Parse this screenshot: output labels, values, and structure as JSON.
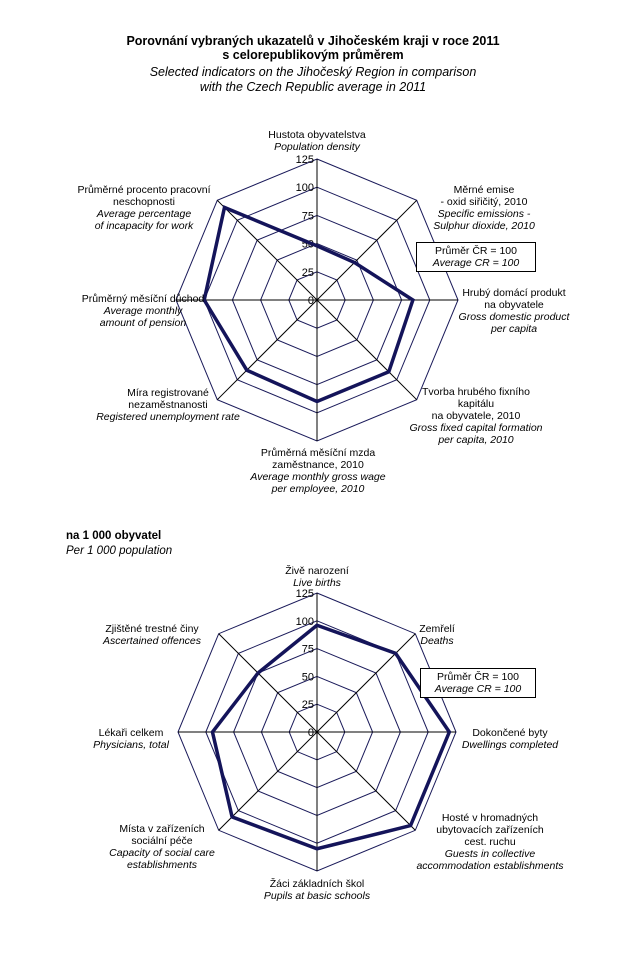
{
  "title": {
    "cz1": "Porovnání vybraných ukazatelů v Jihočeském kraji v roce 2011",
    "cz2": "s celorepublikovým průměrem",
    "en1": "Selected indicators on the Jihočeský Region in comparison",
    "en2": "with the Czech Republic average in 2011"
  },
  "section2": {
    "cz": "na 1 000 obyvatel",
    "en": "Per 1 000 population"
  },
  "legend": {
    "cz": "Průměr ČR = 100",
    "en": "Average CR = 100"
  },
  "colors": {
    "series": "#14145a",
    "grid": "#1a1a5a"
  },
  "chart_data": [
    {
      "type": "radar",
      "rlim": [
        0,
        125
      ],
      "ticks": [
        "0",
        "25",
        "50",
        "75",
        "100",
        "125"
      ],
      "categories": [
        {
          "cz": [
            "Hustota obyvatelstva"
          ],
          "en": [
            "Population density"
          ]
        },
        {
          "cz": [
            "Měrné emise",
            "- oxid siřičitý, 2010"
          ],
          "en": [
            "Specific emissions  -",
            "Sulphur dioxide, 2010"
          ]
        },
        {
          "cz": [
            "Hrubý domácí produkt",
            "na obyvatele"
          ],
          "en": [
            "Gross domestic product",
            "per capita"
          ]
        },
        {
          "cz": [
            "Tvorba hrubého fixního",
            "kapitálu",
            "na obyvatele, 2010"
          ],
          "en": [
            "Gross fixed capital formation",
            "per capita, 2010"
          ]
        },
        {
          "cz": [
            "Průměrná měsíční mzda",
            "zaměstnance, 2010"
          ],
          "en": [
            "Average monthly gross wage",
            "per employee, 2010"
          ]
        },
        {
          "cz": [
            "Míra registrované",
            "nezaměstnanosti"
          ],
          "en": [
            "Registered unemployment rate"
          ]
        },
        {
          "cz": [
            "Průměrný měsíční důchod"
          ],
          "en": [
            "Average monthly",
            "amount of pension"
          ]
        },
        {
          "cz": [
            "Průměrné procento pracovní",
            "neschopnosti"
          ],
          "en": [
            "Average percentage",
            "of incapacity for work"
          ]
        }
      ],
      "values": [
        48,
        47,
        85,
        90,
        90,
        88,
        100,
        116
      ]
    },
    {
      "type": "radar",
      "rlim": [
        0,
        125
      ],
      "ticks": [
        "0",
        "25",
        "50",
        "75",
        "100",
        "125"
      ],
      "categories": [
        {
          "cz": [
            "Živě narození"
          ],
          "en": [
            "Live births"
          ]
        },
        {
          "cz": [
            "Zemřelí"
          ],
          "en": [
            "Deaths"
          ]
        },
        {
          "cz": [
            "Dokončené byty"
          ],
          "en": [
            "Dwellings completed"
          ]
        },
        {
          "cz": [
            "Hosté v hromadných",
            "ubytovacích zařízeních",
            "cest. ruchu"
          ],
          "en": [
            "Guests in collective",
            "accommodation establishments"
          ]
        },
        {
          "cz": [
            "Žáci základních škol"
          ],
          "en": [
            "Pupils at basic schools"
          ]
        },
        {
          "cz": [
            "Místa v zařízeních",
            "sociální péče"
          ],
          "en": [
            "Capacity of social care",
            "establishments"
          ]
        },
        {
          "cz": [
            "Lékaři celkem"
          ],
          "en": [
            "Physicians, total"
          ]
        },
        {
          "cz": [
            "Zjištěné trestné činy"
          ],
          "en": [
            "Ascertained offences"
          ]
        }
      ],
      "values": [
        96,
        100,
        119,
        119,
        105,
        108,
        94,
        75
      ]
    }
  ]
}
